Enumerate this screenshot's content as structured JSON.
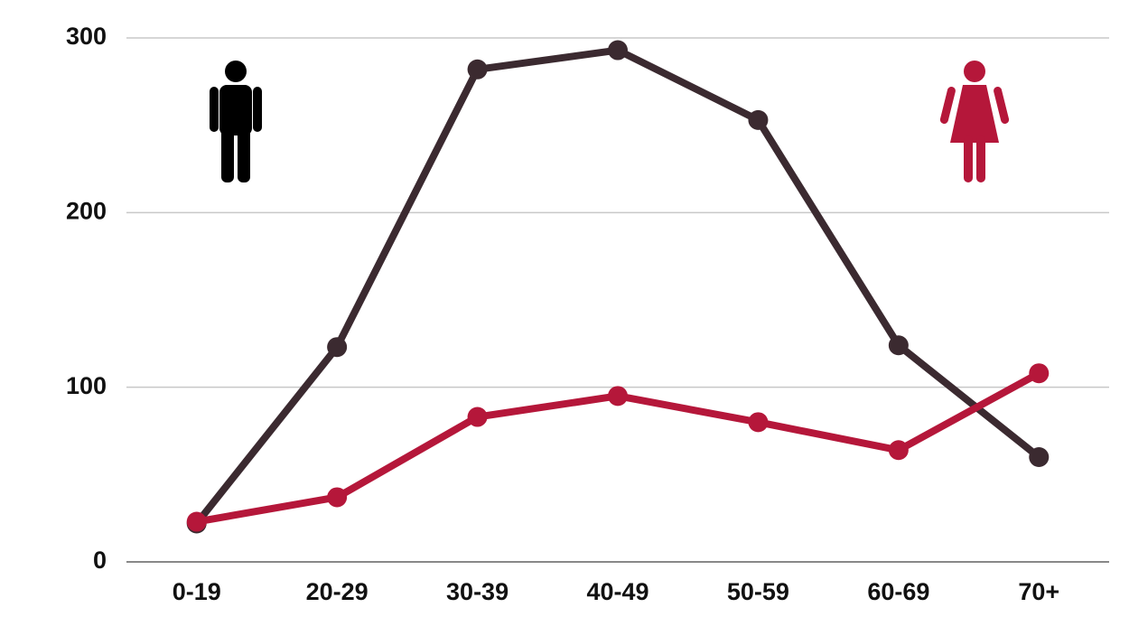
{
  "chart_data": {
    "type": "line",
    "categories": [
      "0-19",
      "20-29",
      "30-39",
      "40-49",
      "50-59",
      "60-69",
      "70+"
    ],
    "series": [
      {
        "color": "#3b2a30",
        "values": [
          22,
          123,
          282,
          293,
          253,
          124,
          60
        ]
      },
      {
        "color": "#b5173a",
        "values": [
          23,
          37,
          83,
          95,
          80,
          64,
          108
        ]
      }
    ],
    "ylim": [
      0,
      300
    ],
    "yticks": [
      0,
      100,
      200,
      300
    ],
    "grid": true
  }
}
